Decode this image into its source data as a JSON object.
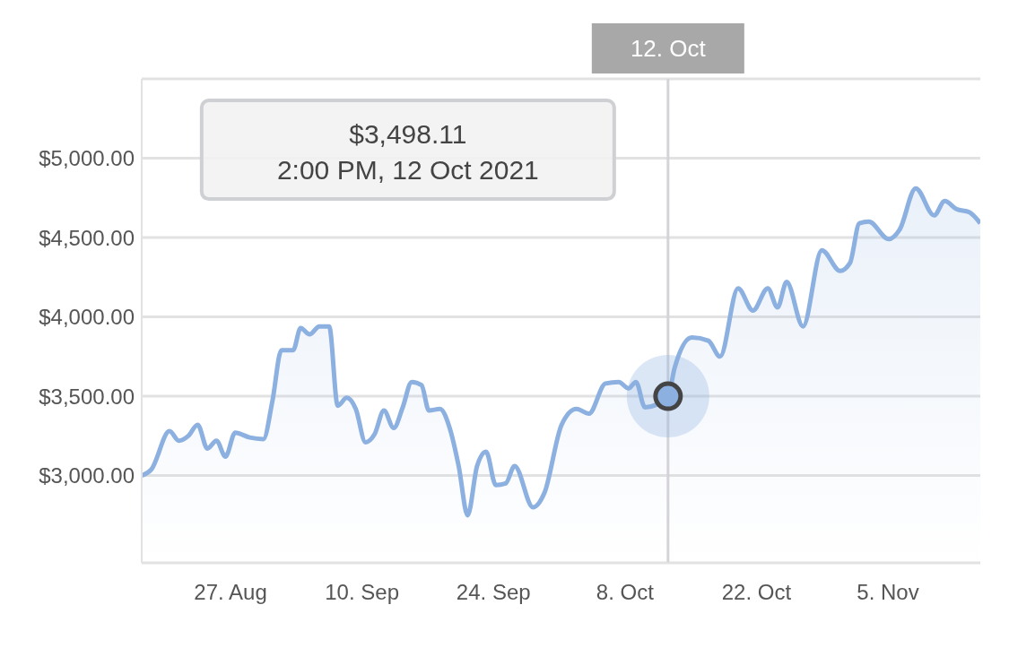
{
  "chart_data": {
    "type": "area",
    "x": [
      "2021-08-17T13:00",
      "2021-08-18T14:00",
      "2021-08-20T12:00",
      "2021-08-21T12:00",
      "2021-08-22T12:00",
      "2021-08-23T12:00",
      "2021-08-24T13:00",
      "2021-08-25T12:00",
      "2021-08-26T11:00",
      "2021-08-27T12:00",
      "2021-08-29T01:00",
      "2021-08-30T12:00",
      "2021-08-31T11:00",
      "2021-09-01T10:00",
      "2021-09-02T16:00",
      "2021-09-03T11:00",
      "2021-09-04T10:00",
      "2021-09-05T11:00",
      "2021-09-06T12:00",
      "2021-09-07T10:00",
      "2021-09-08T09:00",
      "2021-09-09T08:00",
      "2021-09-10T09:00",
      "2021-09-11T08:00",
      "2021-09-12T08:00",
      "2021-09-13T09:00",
      "2021-09-14T08:00",
      "2021-09-15T07:00",
      "2021-09-16T08:00",
      "2021-09-17T03:00",
      "2021-09-18T07:00",
      "2021-09-19T08:00",
      "2021-09-20T07:00",
      "2021-09-21T06:00",
      "2021-09-22T06:00",
      "2021-09-23T05:00",
      "2021-09-24T06:00",
      "2021-09-25T07:00",
      "2021-09-26T06:00",
      "2021-09-28T05:00",
      "2021-09-29T10:00",
      "2021-10-01T06:00",
      "2021-10-02T20:00",
      "2021-10-04T04:00",
      "2021-10-05T22:00",
      "2021-10-07T08:00",
      "2021-10-08T09:00",
      "2021-10-09T04:00",
      "2021-10-10T03:00",
      "2021-10-12T14:00",
      "2021-10-13T07:00",
      "2021-10-15T03:00",
      "2021-10-16T21:00",
      "2021-10-18T03:00",
      "2021-10-20T01:00",
      "2021-10-21T15:00",
      "2021-10-23T05:00",
      "2021-10-24T06:00",
      "2021-10-25T05:00",
      "2021-10-26T23:00",
      "2021-10-28T23:00",
      "2021-10-30T22:00",
      "2021-10-31T23:00",
      "2021-11-01T23:00",
      "2021-11-02T23:00",
      "2021-11-05T02:00",
      "2021-11-06T06:00",
      "2021-11-07T23:00",
      "2021-11-09T22:00",
      "2021-11-11T01:00",
      "2021-11-12T07:00",
      "2021-11-13T16:00",
      "2021-11-14T20:00"
    ],
    "series": [
      {
        "color": "#8cb0e0",
        "values": [
          3000,
          3040,
          3280,
          3220,
          3250,
          3320,
          3170,
          3220,
          3120,
          3270,
          3240,
          3230,
          3470,
          3790,
          3790,
          3930,
          3890,
          3940,
          3940,
          3440,
          3490,
          3420,
          3210,
          3260,
          3410,
          3300,
          3430,
          3590,
          3570,
          3410,
          3420,
          3300,
          3060,
          2750,
          3060,
          3150,
          2940,
          2950,
          3060,
          2800,
          2890,
          3320,
          3420,
          3390,
          3580,
          3590,
          3550,
          3590,
          3430,
          3500,
          3680,
          3870,
          3850,
          3750,
          4180,
          4040,
          4180,
          4060,
          4220,
          3940,
          4420,
          4290,
          4340,
          4590,
          4600,
          4490,
          4550,
          4810,
          4640,
          4730,
          4680,
          4660,
          4590
        ]
      }
    ],
    "xlim": [
      "2021-08-17T13:00",
      "2021-11-14T20:00"
    ],
    "xticks": [
      {
        "value": "2021-08-27",
        "label": "27. Aug"
      },
      {
        "value": "2021-09-10",
        "label": "10. Sep"
      },
      {
        "value": "2021-09-24",
        "label": "24. Sep"
      },
      {
        "value": "2021-10-08",
        "label": "8. Oct"
      },
      {
        "value": "2021-10-22",
        "label": "22. Oct"
      },
      {
        "value": "2021-11-05",
        "label": "5. Nov"
      }
    ],
    "ylim": [
      2450,
      5500
    ],
    "yticks": [
      {
        "value": 3000,
        "label": "$3,000.00"
      },
      {
        "value": 3500,
        "label": "$3,500.00"
      },
      {
        "value": 4000,
        "label": "$4,000.00"
      },
      {
        "value": 4500,
        "label": "$4,500.00"
      },
      {
        "value": 5000,
        "label": "$5,000.00"
      }
    ],
    "grid": "y",
    "ref_lines": [
      {
        "axis": "x",
        "value": "2021-10-12T14:00",
        "label": "12. Oct",
        "color": "#d4d4d8"
      }
    ],
    "annotations": [
      "$3,498.11",
      "2:00 PM, 12 Oct 2021"
    ]
  }
}
